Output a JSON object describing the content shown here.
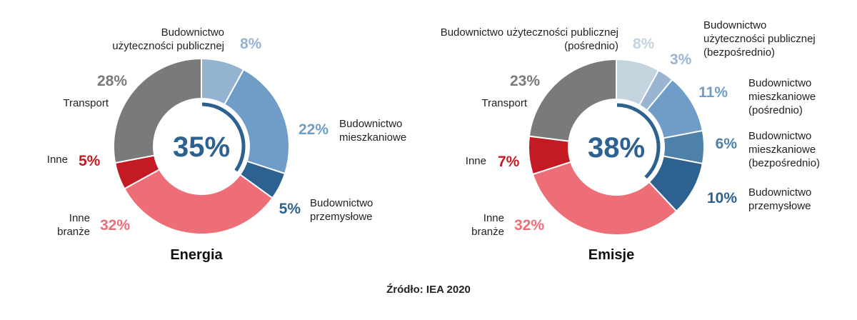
{
  "chart_data": [
    {
      "type": "pie",
      "title": "Energia",
      "center_label": "35%",
      "slices": [
        {
          "label": [
            "Budownictwo",
            "użyteczności publicznej"
          ],
          "value": 8,
          "value_label": "8%",
          "color": "#94b3d1"
        },
        {
          "label": [
            "Budownictwo",
            "mieszkaniowe"
          ],
          "value": 22,
          "value_label": "22%",
          "color": "#6f9dc7"
        },
        {
          "label": [
            "Budownictwo",
            "przemysłowe"
          ],
          "value": 5,
          "value_label": "5%",
          "color": "#2c6190"
        },
        {
          "label": [
            "Inne",
            "branże"
          ],
          "value": 32,
          "value_label": "32%",
          "color": "#ee6e78"
        },
        {
          "label": [
            "Inne"
          ],
          "value": 5,
          "value_label": "5%",
          "color": "#c41a24"
        },
        {
          "label": [
            "Transport"
          ],
          "value": 28,
          "value_label": "28%",
          "color": "#7a7a7a"
        }
      ]
    },
    {
      "type": "pie",
      "title": "Emisje",
      "center_label": "38%",
      "slices": [
        {
          "label": [
            "Budownictwo użyteczności publicznej",
            "(pośrednio)"
          ],
          "value": 8,
          "value_label": "8%",
          "color": "#c3d4df"
        },
        {
          "label": [
            "Budownictwo",
            "użyteczności publicznej",
            "(bezpośrednio)"
          ],
          "value": 3,
          "value_label": "3%",
          "color": "#9ab5d1"
        },
        {
          "label": [
            "Budownictwo",
            "mieszkaniowe",
            "(pośrednio)"
          ],
          "value": 11,
          "value_label": "11%",
          "color": "#6f9dc7"
        },
        {
          "label": [
            "Budownictwo",
            "mieszkaniowe",
            "(bezpośrednio)"
          ],
          "value": 6,
          "value_label": "6%",
          "color": "#4d81a9"
        },
        {
          "label": [
            "Budownictwo",
            "przemysłowe"
          ],
          "value": 10,
          "value_label": "10%",
          "color": "#2c6190"
        },
        {
          "label": [
            "Inne",
            "branże"
          ],
          "value": 32,
          "value_label": "32%",
          "color": "#ee6e78"
        },
        {
          "label": [
            "Inne"
          ],
          "value": 7,
          "value_label": "7%",
          "color": "#c41a24"
        },
        {
          "label": [
            "Transport"
          ],
          "value": 23,
          "value_label": "23%",
          "color": "#7a7a7a"
        }
      ]
    }
  ],
  "source": "Źródło: IEA 2020"
}
